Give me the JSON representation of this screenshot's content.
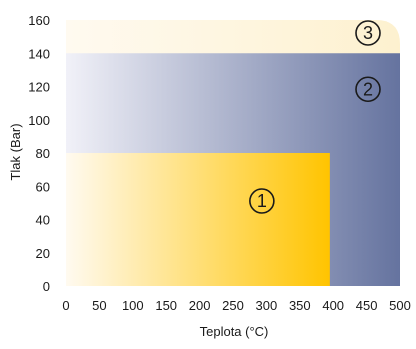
{
  "chart_data": {
    "type": "area",
    "title": "",
    "xlabel": "Teplota (°C)",
    "ylabel": "Tlak (Bar)",
    "xlim": [
      0,
      500
    ],
    "ylim": [
      0,
      160
    ],
    "xticks": [
      "0",
      "50",
      "100",
      "150",
      "200",
      "250",
      "300",
      "350",
      "400",
      "450",
      "500"
    ],
    "yticks": [
      "0",
      "20",
      "40",
      "60",
      "80",
      "100",
      "120",
      "140",
      "160"
    ],
    "grid": false,
    "legend": "none",
    "regions": [
      {
        "label": "3",
        "x": [
          0,
          500
        ],
        "y": [
          0,
          160
        ],
        "color_start": "#fffaf0",
        "color_end": "#fdf1cf"
      },
      {
        "label": "2",
        "x": [
          0,
          500
        ],
        "y": [
          0,
          140
        ],
        "color_start": "#f1f1f8",
        "color_end": "#65739f"
      },
      {
        "label": "1",
        "x": [
          0,
          395
        ],
        "y": [
          0,
          80
        ],
        "color_start": "#fffaf0",
        "color_end": "#ffc400"
      }
    ]
  }
}
